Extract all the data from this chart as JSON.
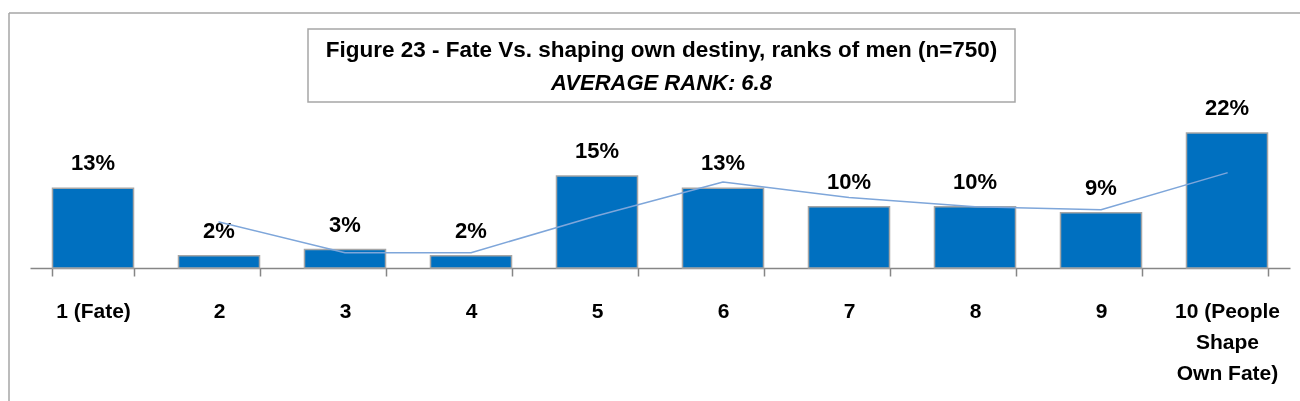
{
  "chart_data": {
    "type": "bar",
    "title": "Figure 23 - Fate Vs. shaping own destiny, ranks of men (n=750)",
    "subtitle": "AVERAGE RANK: 6.8",
    "categories": [
      "1 (Fate)",
      "2",
      "3",
      "4",
      "5",
      "6",
      "7",
      "8",
      "9",
      "10 (People\nShape\nOwn Fate)"
    ],
    "series": [
      {
        "color": "#0070c0",
        "values": [
          13,
          2,
          3,
          2,
          15,
          13,
          10,
          10,
          9,
          22
        ],
        "value_labels": [
          "13%",
          "2%",
          "3%",
          "2%",
          "15%",
          "13%",
          "10%",
          "10%",
          "9%",
          "22%"
        ]
      },
      {
        "type": "line",
        "color": "#7ea6da",
        "values": [
          null,
          7.5,
          2.5,
          2.5,
          8.5,
          14,
          11.5,
          10,
          9.5,
          15.5
        ]
      }
    ]
  }
}
